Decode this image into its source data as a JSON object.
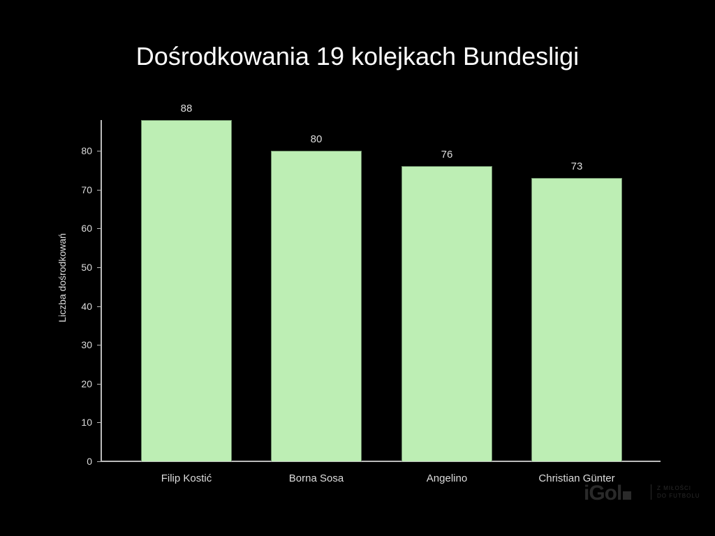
{
  "chart_data": {
    "type": "bar",
    "title": "Dośrodkowania 19 kolejkach Bundesligi",
    "xlabel": "",
    "ylabel": "Liczba dośrodkowań",
    "categories": [
      "Filip Kostić",
      "Borna Sosa",
      "Angelino",
      "Christian Günter"
    ],
    "values": [
      88,
      80,
      76,
      73
    ],
    "value_labels": [
      "88",
      "80",
      "76",
      "73"
    ],
    "ylim": [
      0,
      88
    ],
    "yticks": [
      "0",
      "10",
      "20",
      "30",
      "40",
      "50",
      "60",
      "70",
      "80"
    ],
    "grid": false,
    "legend": null,
    "bar_color": "#bdeeb4",
    "background": "#000000"
  },
  "watermark": {
    "logo": "iGol",
    "tagline_1": "Z MIŁOŚCI",
    "tagline_2": "DO FUTBOLU"
  }
}
